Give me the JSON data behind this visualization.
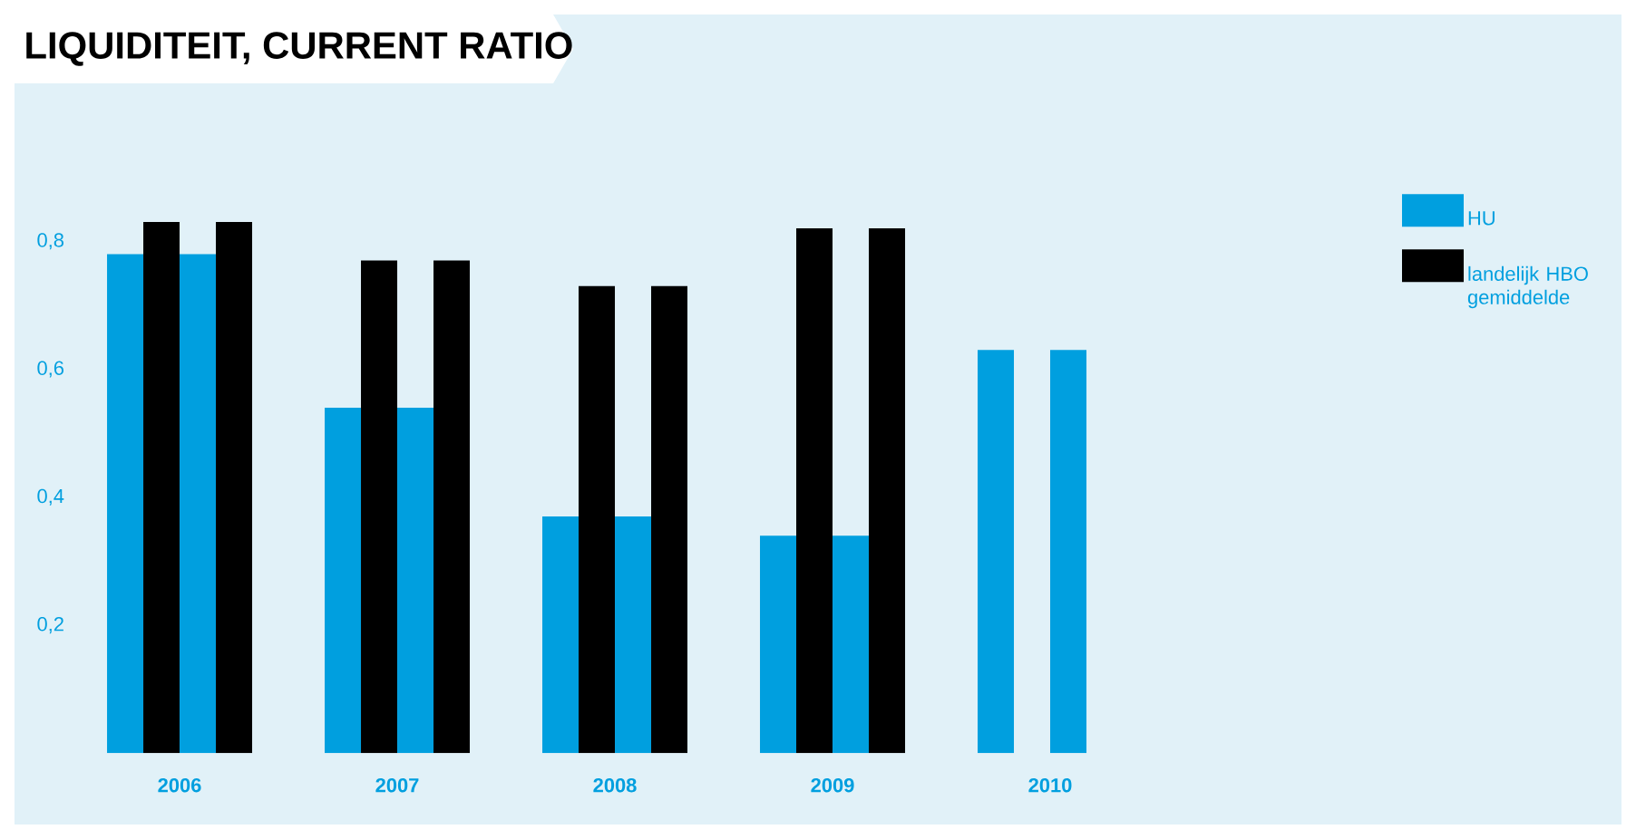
{
  "chart_data": {
    "type": "bar",
    "title": "LIQUIDITEIT, CURRENT RATIO",
    "categories": [
      "2006",
      "2007",
      "2008",
      "2009",
      "2010"
    ],
    "series": [
      {
        "name": "HU",
        "color": "#009fdf",
        "values": [
          0.78,
          0.54,
          0.37,
          0.34,
          0.63
        ]
      },
      {
        "name": "landelijk HBO gemiddelde",
        "color": "#000000",
        "values": [
          0.83,
          0.77,
          0.73,
          0.82,
          null
        ]
      },
      {
        "color": "#009fdf",
        "values": [
          0.78,
          0.54,
          0.37,
          0.34,
          0.63
        ]
      },
      {
        "color": "#000000",
        "values": [
          0.83,
          0.77,
          0.73,
          0.82,
          null
        ]
      }
    ],
    "ylim": [
      0,
      0.83
    ],
    "yticks": [
      {
        "value": 0.2,
        "label": "0,2"
      },
      {
        "value": 0.4,
        "label": "0,4"
      },
      {
        "value": 0.6,
        "label": "0,6"
      },
      {
        "value": 0.8,
        "label": "0,8"
      }
    ],
    "grid": false,
    "legend": "top right"
  }
}
